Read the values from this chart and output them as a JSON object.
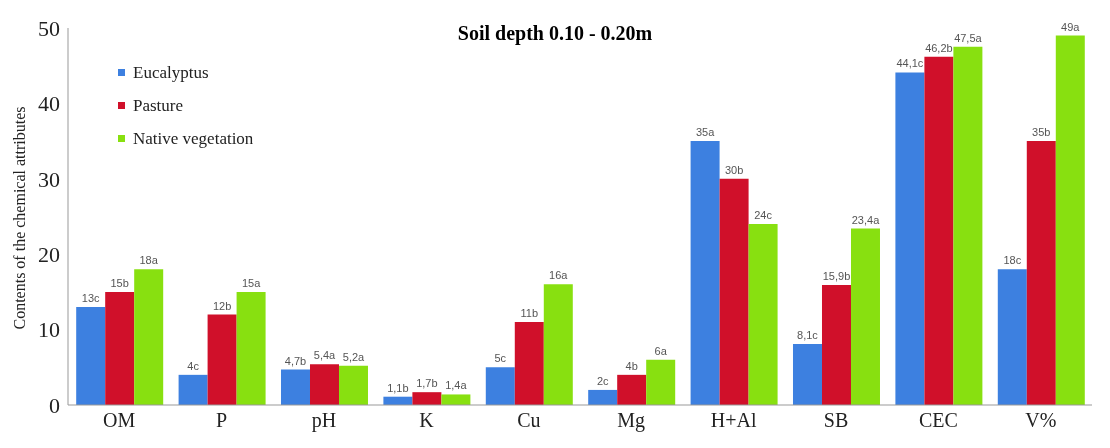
{
  "chart_data": {
    "type": "bar",
    "title": "Soil depth 0.10 - 0.20m",
    "ylabel": "Contents of the chemical attributes",
    "categories": [
      "OM",
      "P",
      "pH",
      "K",
      "Cu",
      "Mg",
      "H+Al",
      "SB",
      "CEC",
      "V%"
    ],
    "ylim": [
      0,
      50
    ],
    "yticks": [
      0,
      10,
      20,
      30,
      40,
      50
    ],
    "grid": false,
    "legend": "top left",
    "series": [
      {
        "name": "Eucalyptus",
        "color": "#3d80e0",
        "values": [
          13,
          4,
          4.7,
          1.1,
          5,
          2,
          35,
          8.1,
          44.1,
          18
        ],
        "value_labels": [
          "13c",
          "4c",
          "4,7b",
          "1,1b",
          "5c",
          "2c",
          "35a",
          "8,1c",
          "44,1c",
          "18c"
        ]
      },
      {
        "name": "Pasture",
        "color": "#d0102a",
        "values": [
          15,
          12,
          5.4,
          1.7,
          11,
          4,
          30,
          15.9,
          46.2,
          35
        ],
        "value_labels": [
          "15b",
          "12b",
          "5,4a",
          "1,7b",
          "11b",
          "4b",
          "30b",
          "15,9b",
          "46,2b",
          "35b"
        ]
      },
      {
        "name": "Native vegetation",
        "color": "#88e010",
        "values": [
          18,
          15,
          5.2,
          1.4,
          16,
          6,
          24,
          23.4,
          47.5,
          49
        ],
        "value_labels": [
          "18a",
          "15a",
          "5,2a",
          "1,4a",
          "16a",
          "6a",
          "24c",
          "23,4a",
          "47,5a",
          "49a"
        ]
      }
    ]
  }
}
